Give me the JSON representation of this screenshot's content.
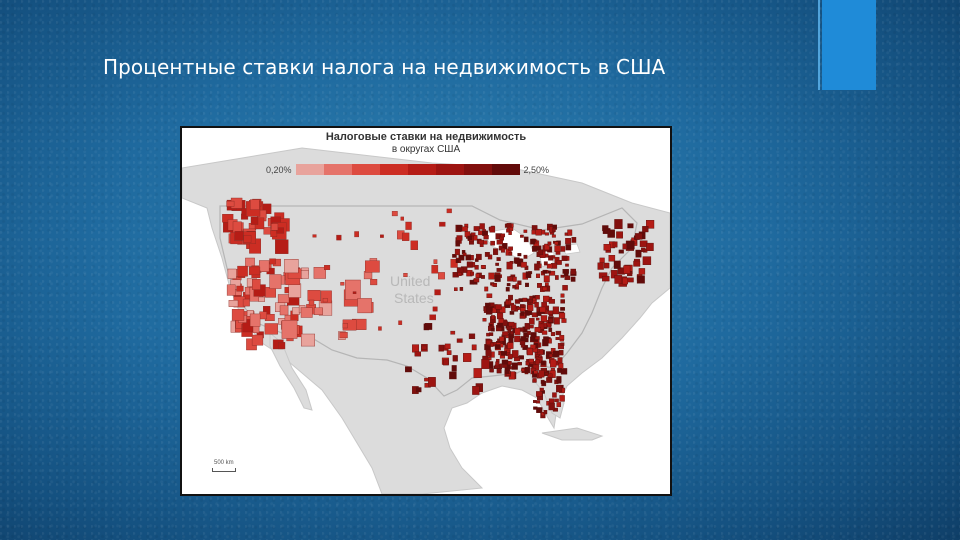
{
  "slide": {
    "title": "Процентные ставки налога на недвижимость в США"
  },
  "map": {
    "legend": {
      "title": "Налоговые ставки на недвижимость",
      "subtitle": "в округах США",
      "min_label": "0,20%",
      "max_label": "2,50%",
      "colors": [
        "#e8a39c",
        "#e5736a",
        "#dd4b40",
        "#cc2d23",
        "#b51c16",
        "#9d1411",
        "#82100e",
        "#620b0a"
      ]
    },
    "country_label_line1": "United",
    "country_label_line2": "States",
    "scale_label": "500 km"
  },
  "colors": {
    "background": "#1f6a9f",
    "accent": "#1f8bd8",
    "land": "#dcdcdc",
    "water": "#ffffff"
  }
}
